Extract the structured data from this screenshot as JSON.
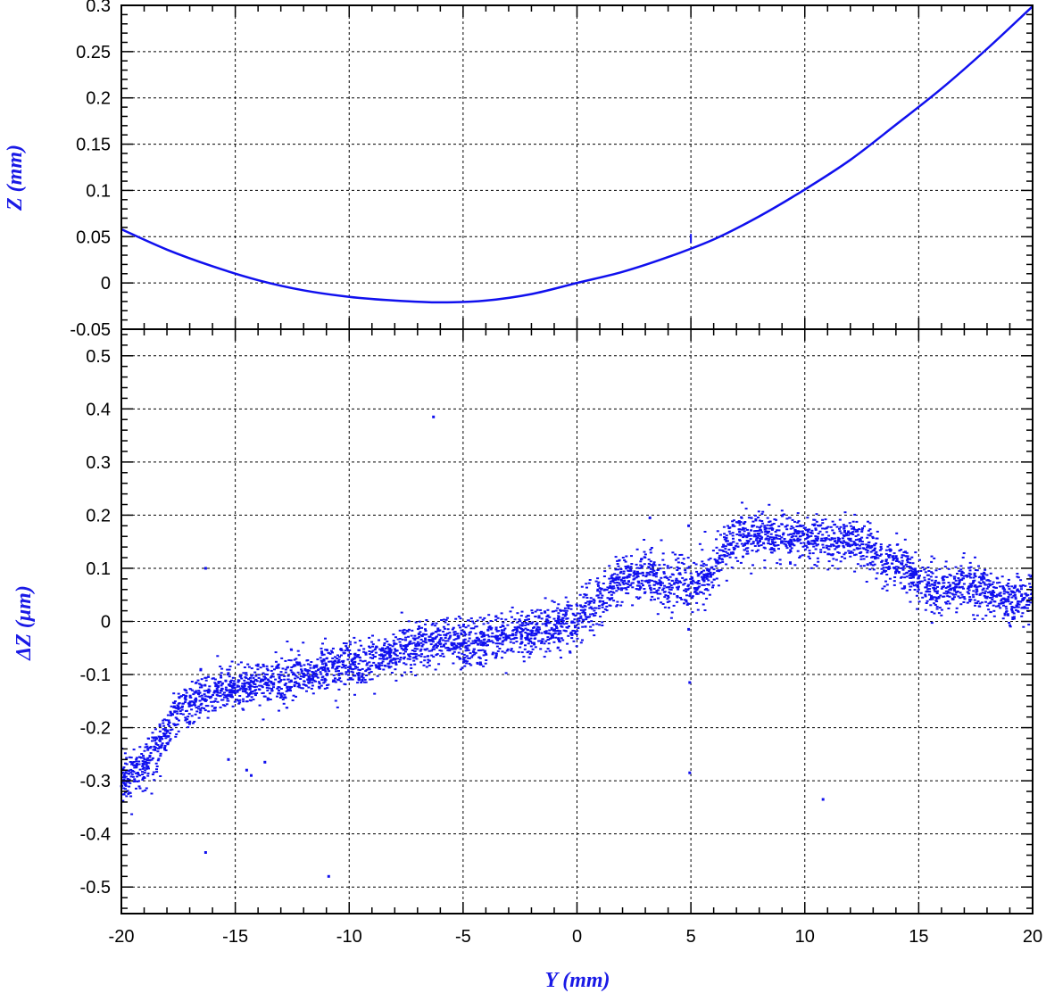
{
  "colors": {
    "series": "#1010ee",
    "axis": "#000000",
    "grid": "#000000",
    "axis_title": "#1a1ae6"
  },
  "chart_data": [
    {
      "type": "line",
      "xlabel": "",
      "ylabel": "Z (mm)",
      "xlim": [
        -20,
        20
      ],
      "ylim": [
        -0.05,
        0.3
      ],
      "xticks": [
        -20,
        -15,
        -10,
        -5,
        0,
        5,
        10,
        15,
        20
      ],
      "yticks": [
        -0.05,
        0,
        0.05,
        0.1,
        0.15,
        0.2,
        0.25,
        0.3
      ],
      "ytick_labels": [
        "-0.05",
        "0",
        "0.05",
        "0.1",
        "0.15",
        "0.2",
        "0.25",
        "0.3"
      ],
      "grid": true,
      "series": [
        {
          "x": [
            -20,
            -18,
            -16,
            -14,
            -12,
            -10,
            -8,
            -6,
            -4,
            -2,
            0,
            2,
            4,
            6,
            8,
            10,
            12,
            14,
            16,
            18,
            20
          ],
          "y": [
            0.058,
            0.036,
            0.018,
            0.003,
            -0.008,
            -0.015,
            -0.019,
            -0.021,
            -0.019,
            -0.012,
            0.0,
            0.012,
            0.028,
            0.047,
            0.072,
            0.101,
            0.133,
            0.171,
            0.21,
            0.253,
            0.299
          ]
        }
      ],
      "annotations": [
        {
          "type": "vertical-spike",
          "x": 5,
          "y_from": 0.043,
          "y_to": 0.053
        }
      ]
    },
    {
      "type": "scatter",
      "xlabel": "Y (mm)",
      "ylabel": "ΔZ (μm)",
      "xlim": [
        -20,
        20
      ],
      "ylim": [
        -0.55,
        0.55
      ],
      "xticks": [
        -20,
        -15,
        -10,
        -5,
        0,
        5,
        10,
        15,
        20
      ],
      "xtick_labels": [
        "-20",
        "-15",
        "-10",
        "-5",
        "0",
        "5",
        "10",
        "15",
        "20"
      ],
      "yticks": [
        -0.5,
        -0.4,
        -0.3,
        -0.2,
        -0.1,
        0,
        0.1,
        0.2,
        0.3,
        0.4,
        0.5
      ],
      "ytick_labels": [
        "-0.5",
        "-0.4",
        "-0.3",
        "-0.2",
        "-0.1",
        "0",
        "0.1",
        "0.2",
        "0.3",
        "0.4",
        "0.5"
      ],
      "grid": true,
      "series": [
        {
          "trend_x": [
            -20,
            -19,
            -18.3,
            -17.5,
            -16.5,
            -15,
            -13,
            -11,
            -10,
            -9,
            -8,
            -6,
            -5,
            -4,
            -3,
            -2,
            -1,
            0,
            1,
            2,
            3,
            4,
            5,
            5.8,
            6.5,
            7,
            8,
            9,
            10,
            11,
            12,
            12.8,
            13.5,
            14.5,
            15.2,
            16,
            17,
            18,
            19,
            20
          ],
          "trend_y": [
            -0.3,
            -0.27,
            -0.23,
            -0.17,
            -0.14,
            -0.125,
            -0.11,
            -0.09,
            -0.085,
            -0.08,
            -0.06,
            -0.035,
            -0.045,
            -0.04,
            -0.03,
            -0.02,
            -0.01,
            0.0,
            0.04,
            0.08,
            0.085,
            0.07,
            0.07,
            0.09,
            0.14,
            0.16,
            0.165,
            0.16,
            0.155,
            0.15,
            0.155,
            0.14,
            0.11,
            0.1,
            0.07,
            0.06,
            0.065,
            0.06,
            0.04,
            0.04
          ],
          "spread": 0.022,
          "point_count": 4200
        }
      ],
      "outliers": [
        {
          "x": -6.3,
          "y": 0.385
        },
        {
          "x": -16.3,
          "y": 0.1
        },
        {
          "x": -16.3,
          "y": -0.435
        },
        {
          "x": -15.3,
          "y": -0.26
        },
        {
          "x": -14.5,
          "y": -0.28
        },
        {
          "x": -14.3,
          "y": -0.29
        },
        {
          "x": -13.7,
          "y": -0.265
        },
        {
          "x": -10.9,
          "y": -0.48
        },
        {
          "x": 3.2,
          "y": 0.195
        },
        {
          "x": 4.9,
          "y": 0.18
        },
        {
          "x": 4.9,
          "y": -0.015
        },
        {
          "x": 4.95,
          "y": -0.115
        },
        {
          "x": 4.95,
          "y": -0.285
        },
        {
          "x": 10.8,
          "y": -0.335
        }
      ]
    }
  ]
}
